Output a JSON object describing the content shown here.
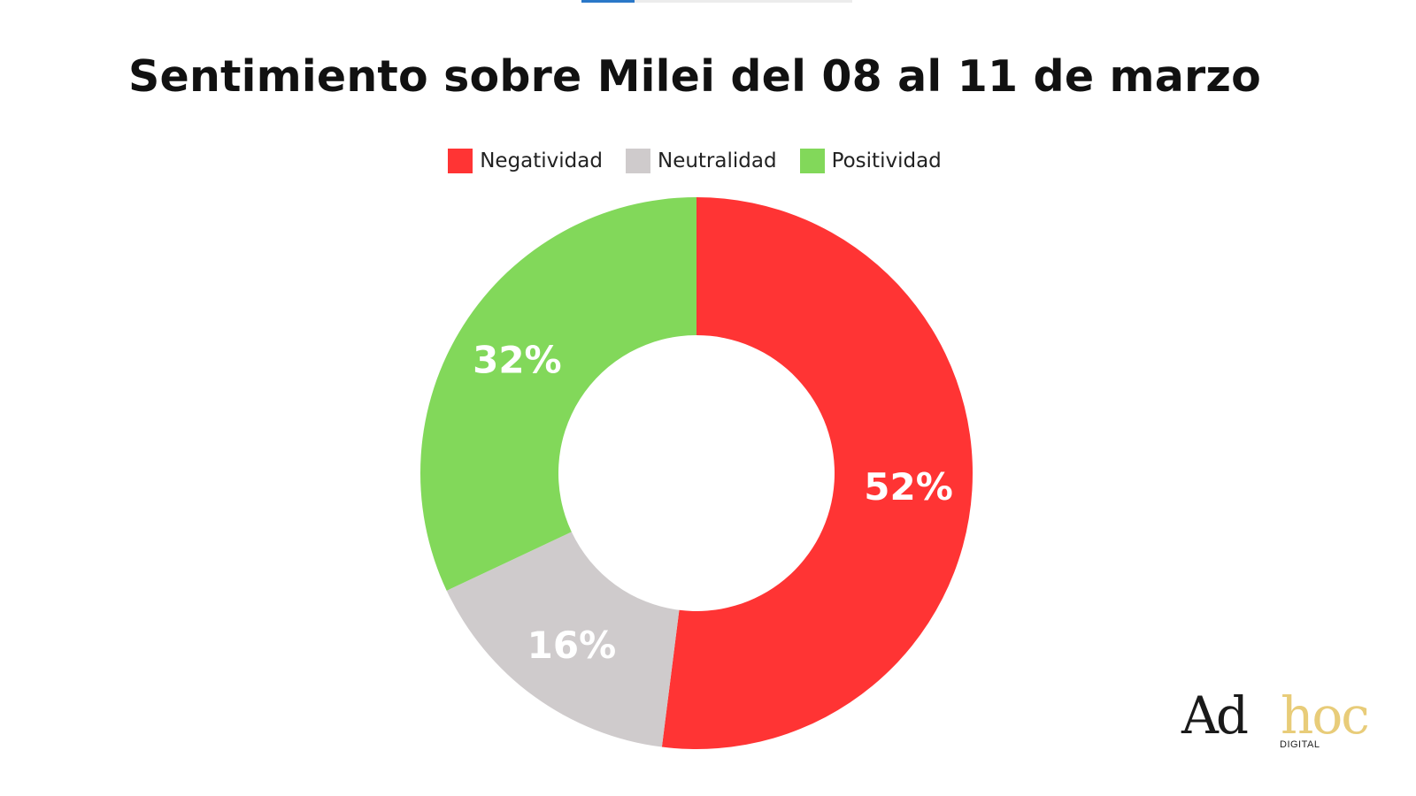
{
  "chart_data": {
    "type": "pie",
    "title": "Sentimiento sobre Milei del 08 al 11 de marzo",
    "legend_position": "top-center",
    "donut": true,
    "slices": [
      {
        "label": "Negatividad",
        "value": 52,
        "display": "52%",
        "color": "#ff3434"
      },
      {
        "label": "Neutralidad",
        "value": 16,
        "display": "16%",
        "color": "#cfcbcc"
      },
      {
        "label": "Positividad",
        "value": 32,
        "display": "32%",
        "color": "#82d85a"
      }
    ]
  },
  "legend": {
    "items": [
      {
        "label": "Negatividad",
        "color": "#ff3434"
      },
      {
        "label": "Neutralidad",
        "color": "#cfcbcc"
      },
      {
        "label": "Positividad",
        "color": "#82d85a"
      }
    ]
  },
  "logo": {
    "primary": "Ad",
    "secondary": "hoc",
    "sub": "DIGITAL"
  }
}
